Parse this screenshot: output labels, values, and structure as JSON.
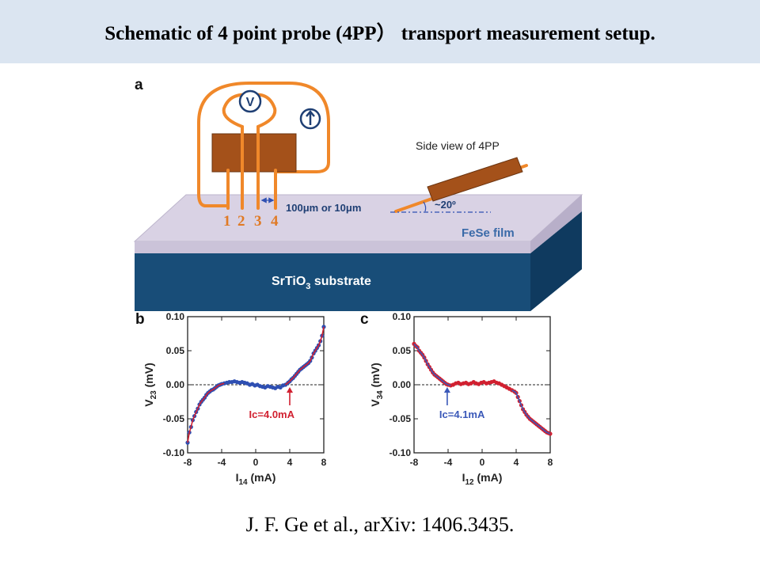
{
  "slide": {
    "title": "Schematic of 4 point probe (4PP） transport measurement setup.",
    "citation": "J. F. Ge et al., arXiv: 1406.3435."
  },
  "colors": {
    "title_bar": "#dbe5f1",
    "probe": "#f0882a",
    "probe_body": "#a4511a",
    "film": "#d9d2e4",
    "substrate": "#184d78",
    "series_b": "#2e4fb2",
    "series_c": "#d12030",
    "fit": "#d12030",
    "fit_c": "#3a58b8"
  },
  "schematic": {
    "panel_label": "a",
    "probe_numbers": [
      "1",
      "2",
      "3",
      "4"
    ],
    "voltmeter_symbol": "V",
    "current_source_icon": "up-arrow-in-circle",
    "spacing_label": "100μm or 10μm",
    "side_view_title": "Side view of 4PP",
    "angle_label": "~20º",
    "film_label": "FeSe film",
    "substrate_label_main": "SrTiO",
    "substrate_label_sub": "3",
    "substrate_label_tail": " substrate"
  },
  "chart_data": [
    {
      "type": "scatter",
      "panel_label": "b",
      "xlabel_main": "I",
      "xlabel_sub": "14",
      "xlabel_unit": " (mA)",
      "ylabel_main": "V",
      "ylabel_sub": "23",
      "ylabel_unit": " (mV)",
      "xlim": [
        -8,
        8
      ],
      "ylim": [
        -0.1,
        0.1
      ],
      "xticks": [
        "-8",
        "-4",
        "0",
        "4",
        "8"
      ],
      "yticks": [
        "0.10",
        "0.05",
        "0.00",
        "-0.05",
        "-0.10"
      ],
      "annotation": "Ic=4.0mA",
      "annotation_x": 4.0,
      "marker_color": "#2e4fb2",
      "fit_color": "#d12030",
      "zero_line": "dashed",
      "x": [
        -8.0,
        -7.8,
        -7.6,
        -7.4,
        -7.2,
        -7.0,
        -6.8,
        -6.6,
        -6.4,
        -6.2,
        -6.0,
        -5.8,
        -5.6,
        -5.4,
        -5.2,
        -5.0,
        -4.8,
        -4.6,
        -4.4,
        -4.2,
        -4.0,
        -3.7,
        -3.4,
        -3.1,
        -2.8,
        -2.5,
        -2.2,
        -1.9,
        -1.6,
        -1.3,
        -1.0,
        -0.7,
        -0.4,
        -0.1,
        0.2,
        0.5,
        0.8,
        1.1,
        1.4,
        1.7,
        2.0,
        2.3,
        2.6,
        2.9,
        3.2,
        3.5,
        3.8,
        4.0,
        4.2,
        4.4,
        4.6,
        4.8,
        5.0,
        5.2,
        5.4,
        5.6,
        5.8,
        6.0,
        6.2,
        6.4,
        6.6,
        6.8,
        7.0,
        7.2,
        7.4,
        7.6,
        7.8,
        8.0
      ],
      "y": [
        -0.085,
        -0.07,
        -0.062,
        -0.052,
        -0.046,
        -0.04,
        -0.035,
        -0.029,
        -0.025,
        -0.022,
        -0.019,
        -0.015,
        -0.012,
        -0.01,
        -0.008,
        -0.007,
        -0.005,
        -0.003,
        -0.001,
        0.0,
        0.001,
        0.002,
        0.003,
        0.004,
        0.004,
        0.005,
        0.004,
        0.003,
        0.004,
        0.003,
        0.002,
        0.0,
        0.001,
        -0.001,
        0.0,
        -0.002,
        -0.003,
        -0.004,
        -0.002,
        -0.003,
        -0.004,
        -0.005,
        -0.003,
        -0.004,
        -0.001,
        0.0,
        0.003,
        0.005,
        0.008,
        0.01,
        0.013,
        0.016,
        0.019,
        0.022,
        0.024,
        0.026,
        0.028,
        0.03,
        0.032,
        0.035,
        0.04,
        0.046,
        0.05,
        0.054,
        0.058,
        0.064,
        0.072,
        0.085
      ]
    },
    {
      "type": "scatter",
      "panel_label": "c",
      "xlabel_main": "I",
      "xlabel_sub": "12",
      "xlabel_unit": " (mA)",
      "ylabel_main": "V",
      "ylabel_sub": "34",
      "ylabel_unit": " (mV)",
      "xlim": [
        -8,
        8
      ],
      "ylim": [
        -0.1,
        0.1
      ],
      "xticks": [
        "-8",
        "-4",
        "0",
        "4",
        "8"
      ],
      "yticks": [
        "0.10",
        "0.05",
        "0.00",
        "-0.05",
        "-0.10"
      ],
      "annotation": "Ic=4.1mA",
      "annotation_x": -4.1,
      "marker_color": "#d12030",
      "fit_color": "#3a58b8",
      "zero_line": "dashed",
      "x": [
        -8.0,
        -7.8,
        -7.6,
        -7.4,
        -7.2,
        -7.0,
        -6.8,
        -6.6,
        -6.4,
        -6.2,
        -6.0,
        -5.8,
        -5.6,
        -5.4,
        -5.2,
        -5.0,
        -4.8,
        -4.6,
        -4.4,
        -4.2,
        -4.0,
        -3.7,
        -3.4,
        -3.1,
        -2.8,
        -2.5,
        -2.2,
        -1.9,
        -1.6,
        -1.3,
        -1.0,
        -0.7,
        -0.4,
        -0.1,
        0.2,
        0.5,
        0.8,
        1.1,
        1.4,
        1.7,
        2.0,
        2.3,
        2.6,
        2.9,
        3.2,
        3.5,
        3.8,
        4.0,
        4.2,
        4.4,
        4.6,
        4.8,
        5.0,
        5.2,
        5.4,
        5.6,
        5.8,
        6.0,
        6.2,
        6.4,
        6.6,
        6.8,
        7.0,
        7.2,
        7.4,
        7.6,
        7.8,
        8.0
      ],
      "y": [
        0.06,
        0.057,
        0.055,
        0.05,
        0.047,
        0.044,
        0.04,
        0.035,
        0.03,
        0.026,
        0.022,
        0.018,
        0.015,
        0.013,
        0.011,
        0.009,
        0.007,
        0.005,
        0.003,
        0.001,
        0.0,
        -0.001,
        0.0,
        0.002,
        0.003,
        0.001,
        0.002,
        0.003,
        0.001,
        0.002,
        0.004,
        0.002,
        0.001,
        0.003,
        0.004,
        0.002,
        0.003,
        0.004,
        0.005,
        0.003,
        0.002,
        0.0,
        -0.002,
        -0.004,
        -0.006,
        -0.008,
        -0.01,
        -0.012,
        -0.018,
        -0.024,
        -0.03,
        -0.036,
        -0.04,
        -0.044,
        -0.047,
        -0.05,
        -0.052,
        -0.054,
        -0.056,
        -0.058,
        -0.06,
        -0.062,
        -0.064,
        -0.066,
        -0.068,
        -0.07,
        -0.071,
        -0.072
      ]
    }
  ]
}
